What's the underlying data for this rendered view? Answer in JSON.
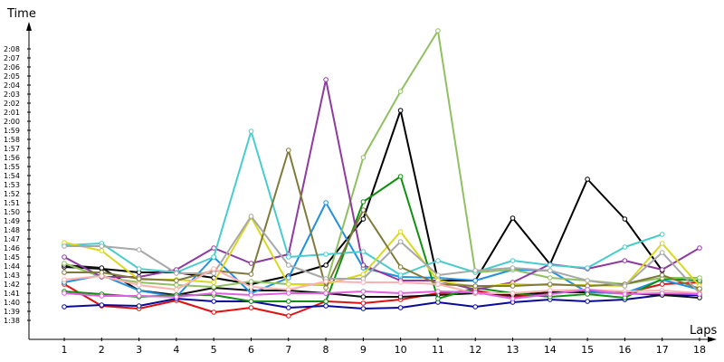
{
  "chart_data": {
    "type": "line",
    "title": "",
    "ylabel": "Time",
    "xlabel": "Laps",
    "x": [
      1,
      2,
      3,
      4,
      5,
      6,
      7,
      8,
      9,
      10,
      11,
      12,
      13,
      14,
      15,
      16,
      17,
      18
    ],
    "xlim": [
      1,
      18
    ],
    "ylim": [
      97,
      130
    ],
    "y_unit": "seconds",
    "y_ticks": [
      98,
      99,
      100,
      101,
      102,
      103,
      104,
      105,
      106,
      107,
      108,
      109,
      110,
      111,
      112,
      113,
      114,
      115,
      116,
      117,
      118,
      119,
      120,
      121,
      122,
      123,
      124,
      125,
      126,
      127,
      128
    ],
    "y_tick_labels": [
      "1:38",
      "1:39",
      "1:40",
      "1:41",
      "1:42",
      "1:43",
      "1:44",
      "1:45",
      "1:46",
      "1:47",
      "1:48",
      "1:49",
      "1:50",
      "1:51",
      "1:52",
      "1:53",
      "1:54",
      "1:55",
      "1:56",
      "1:57",
      "1:58",
      "1:59",
      "2:00",
      "2:01",
      "2:02",
      "2:03",
      "2:04",
      "2:05",
      "2:06",
      "2:07",
      "2:08"
    ],
    "x_tick_labels": [
      "1",
      "2",
      "3",
      "4",
      "5",
      "6",
      "7",
      "8",
      "9",
      "10",
      "11",
      "12",
      "13",
      "14",
      "15",
      "16",
      "17",
      "18"
    ],
    "grid": false,
    "legend": "none",
    "series": [
      {
        "color": "#e01010",
        "values": [
          102.0,
          99.6,
          99.3,
          100.2,
          98.9,
          99.4,
          98.5,
          100.1,
          99.9,
          100.3,
          101.0,
          101.3,
          100.6,
          101.0,
          101.3,
          101.0,
          102.0,
          102.2
        ]
      },
      {
        "color": "#0a0a9a",
        "values": [
          99.5,
          99.7,
          99.6,
          100.4,
          100.1,
          100.1,
          99.4,
          99.6,
          99.3,
          99.4,
          100.0,
          99.5,
          100.0,
          100.3,
          100.1,
          100.3,
          100.8,
          100.8
        ]
      },
      {
        "color": "#000000",
        "values": [
          103.9,
          103.7,
          103.3,
          103.3,
          102.7,
          102.0,
          102.9,
          104.1,
          109.2,
          121.2,
          102.4,
          102.4,
          109.3,
          104.2,
          113.6,
          109.2,
          103.5,
          null
        ]
      },
      {
        "color": "#111111",
        "values": [
          104.1,
          103.8,
          101.3,
          100.8,
          101.6,
          101.3,
          101.3,
          101.0,
          100.6,
          100.6,
          100.8,
          101.0,
          100.8,
          101.1,
          101.1,
          101.0,
          100.8,
          100.5
        ]
      },
      {
        "color": "#2090e0",
        "values": [
          102.2,
          103.0,
          101.3,
          100.6,
          105.0,
          101.0,
          102.7,
          111.0,
          103.8,
          102.8,
          102.7,
          102.4,
          103.6,
          103.5,
          101.1,
          101.0,
          102.5,
          101.4
        ]
      },
      {
        "color": "#109010",
        "values": [
          101.2,
          100.9,
          100.6,
          100.8,
          100.8,
          100.1,
          100.1,
          100.1,
          111.1,
          113.9,
          100.4,
          101.6,
          101.0,
          100.6,
          100.9,
          100.5,
          102.6,
          102.4
        ]
      },
      {
        "color": "#90c060",
        "values": [
          104.3,
          102.8,
          102.2,
          101.9,
          101.7,
          102.3,
          102.0,
          101.9,
          116.0,
          123.3,
          130.0,
          103.3,
          103.6,
          102.7,
          102.4,
          102.0,
          102.7,
          102.7
        ]
      },
      {
        "color": "#8e3aa0",
        "values": [
          105.0,
          102.8,
          102.8,
          103.6,
          106.0,
          104.3,
          105.3,
          124.6,
          104.1,
          102.4,
          102.4,
          101.4,
          102.2,
          104.2,
          103.7,
          104.6,
          103.6,
          106.0
        ]
      },
      {
        "color": "#48cccc",
        "values": [
          106.3,
          106.5,
          103.7,
          103.3,
          105.0,
          118.9,
          105.0,
          105.3,
          105.6,
          103.0,
          104.6,
          103.3,
          104.6,
          104.1,
          103.8,
          106.1,
          107.5,
          null
        ]
      },
      {
        "color": "#d8d820",
        "values": [
          106.6,
          105.7,
          102.5,
          102.5,
          102.2,
          109.4,
          102.0,
          102.0,
          103.1,
          107.8,
          102.4,
          101.7,
          102.0,
          101.9,
          101.9,
          101.8,
          106.5,
          101.8
        ]
      },
      {
        "color": "#807a3a",
        "values": [
          103.3,
          103.3,
          102.6,
          102.4,
          103.5,
          103.1,
          116.8,
          101.6,
          110.2,
          103.9,
          102.0,
          101.8,
          101.8,
          102.0,
          101.8,
          102.0,
          103.0,
          101.5
        ]
      },
      {
        "color": "#a8a8a8",
        "values": [
          106.2,
          106.2,
          105.8,
          103.2,
          103.2,
          109.5,
          104.1,
          102.6,
          102.6,
          106.7,
          103.0,
          103.5,
          103.8,
          103.5,
          102.4,
          101.8,
          105.5,
          101.0
        ]
      },
      {
        "color": "#ffb0b0",
        "values": [
          102.5,
          102.9,
          101.9,
          101.4,
          103.7,
          101.7,
          101.4,
          102.3,
          102.2,
          102.2,
          102.0,
          101.0,
          101.0,
          101.3,
          101.4,
          101.2,
          101.3,
          101.0
        ]
      },
      {
        "color": "#e060e0",
        "values": [
          101.0,
          100.7,
          100.7,
          100.6,
          101.0,
          100.8,
          101.0,
          101.0,
          101.2,
          101.0,
          101.2,
          101.1,
          100.4,
          100.9,
          101.4,
          100.9,
          101.0,
          100.9
        ]
      }
    ]
  }
}
